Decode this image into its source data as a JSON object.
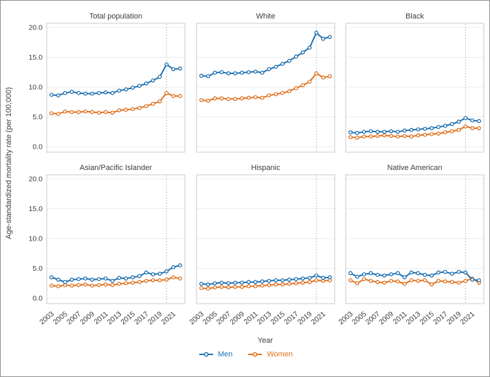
{
  "chart_data": {
    "type": "line",
    "ylabel": "Age-standardized mortality rate (per 100,000)",
    "xlabel": "Year",
    "ylim": [
      0,
      20
    ],
    "y_tick_values": [
      20,
      15,
      10,
      5,
      0
    ],
    "y_tick_labels": [
      "20.0",
      "15.0",
      "10.0",
      "5.0",
      "0.0"
    ],
    "years": [
      2003,
      2004,
      2005,
      2006,
      2007,
      2008,
      2009,
      2010,
      2011,
      2012,
      2013,
      2014,
      2015,
      2016,
      2017,
      2018,
      2019,
      2020,
      2021,
      2022
    ],
    "x_tick_labels": [
      "2003",
      "2005",
      "2007",
      "2009",
      "2011",
      "2013",
      "2015",
      "2017",
      "2019",
      "2021"
    ],
    "reference_line_year": 2020,
    "grid": true,
    "legend_position": "bottom",
    "legend": [
      {
        "label": "Men",
        "color": "#1d6fb0"
      },
      {
        "label": "Women",
        "color": "#e0711f"
      }
    ],
    "panels": [
      {
        "title": "Total population",
        "series": [
          {
            "name": "Men",
            "values": [
              8.7,
              8.6,
              9.0,
              9.2,
              9.0,
              8.9,
              8.9,
              9.0,
              9.1,
              9.0,
              9.4,
              9.6,
              9.9,
              10.2,
              10.6,
              11.1,
              11.7,
              13.8,
              13.0,
              13.1
            ]
          },
          {
            "name": "Women",
            "values": [
              5.6,
              5.5,
              5.9,
              5.8,
              5.8,
              5.9,
              5.8,
              5.7,
              5.8,
              5.7,
              6.1,
              6.2,
              6.3,
              6.5,
              6.8,
              7.2,
              7.6,
              9.0,
              8.5,
              8.5
            ]
          }
        ]
      },
      {
        "title": "White",
        "series": [
          {
            "name": "Men",
            "values": [
              11.9,
              11.8,
              12.4,
              12.5,
              12.3,
              12.3,
              12.4,
              12.5,
              12.6,
              12.4,
              13.0,
              13.4,
              13.9,
              14.4,
              15.1,
              15.8,
              16.6,
              19.1,
              18.1,
              18.4
            ]
          },
          {
            "name": "Women",
            "values": [
              7.8,
              7.7,
              8.1,
              8.1,
              8.0,
              8.0,
              8.1,
              8.2,
              8.3,
              8.2,
              8.6,
              8.8,
              9.0,
              9.3,
              9.8,
              10.3,
              10.9,
              12.3,
              11.6,
              11.8
            ]
          }
        ]
      },
      {
        "title": "Black",
        "series": [
          {
            "name": "Men",
            "values": [
              2.4,
              2.3,
              2.5,
              2.6,
              2.5,
              2.5,
              2.6,
              2.5,
              2.7,
              2.8,
              2.9,
              3.0,
              3.1,
              3.3,
              3.5,
              3.8,
              4.2,
              4.8,
              4.4,
              4.3
            ]
          },
          {
            "name": "Women",
            "values": [
              1.6,
              1.5,
              1.7,
              1.7,
              1.8,
              1.9,
              1.8,
              1.7,
              1.8,
              1.7,
              1.9,
              2.0,
              2.1,
              2.2,
              2.4,
              2.6,
              2.8,
              3.4,
              3.1,
              3.1
            ]
          }
        ]
      },
      {
        "title": "Asian/Pacific Islander",
        "series": [
          {
            "name": "Men",
            "values": [
              3.5,
              3.1,
              2.7,
              3.1,
              3.2,
              3.3,
              3.1,
              3.2,
              3.3,
              2.9,
              3.4,
              3.3,
              3.5,
              3.7,
              4.3,
              4.0,
              4.1,
              4.5,
              5.2,
              5.5
            ]
          },
          {
            "name": "Women",
            "values": [
              2.1,
              2.0,
              2.2,
              2.1,
              2.2,
              2.3,
              2.1,
              2.2,
              2.3,
              2.2,
              2.4,
              2.5,
              2.6,
              2.7,
              2.9,
              3.0,
              3.0,
              3.1,
              3.5,
              3.3
            ]
          }
        ]
      },
      {
        "title": "Hispanic",
        "series": [
          {
            "name": "Men",
            "values": [
              2.4,
              2.3,
              2.5,
              2.6,
              2.5,
              2.6,
              2.6,
              2.7,
              2.7,
              2.8,
              2.9,
              3.0,
              3.0,
              3.1,
              3.2,
              3.3,
              3.4,
              3.8,
              3.4,
              3.5
            ]
          },
          {
            "name": "Women",
            "values": [
              1.7,
              1.6,
              1.8,
              1.9,
              1.8,
              1.9,
              1.9,
              2.0,
              2.0,
              2.1,
              2.2,
              2.3,
              2.3,
              2.4,
              2.5,
              2.6,
              2.7,
              3.0,
              2.9,
              3.0
            ]
          }
        ]
      },
      {
        "title": "Native American",
        "series": [
          {
            "name": "Men",
            "values": [
              4.2,
              3.6,
              4.0,
              4.2,
              3.9,
              3.8,
              4.0,
              4.2,
              3.5,
              4.3,
              4.2,
              3.9,
              3.8,
              4.3,
              4.4,
              4.1,
              4.4,
              4.3,
              3.1,
              3.0
            ]
          },
          {
            "name": "Women",
            "values": [
              3.0,
              2.5,
              3.2,
              2.9,
              2.7,
              2.6,
              2.9,
              2.8,
              2.4,
              3.0,
              2.9,
              3.0,
              2.3,
              2.9,
              2.8,
              2.7,
              2.6,
              2.9,
              3.3,
              2.6
            ]
          }
        ]
      }
    ],
    "style_colors": {
      "grid": "#ececec",
      "panel_border": "#c9c9c9",
      "reference_line": "#b0b0b0",
      "text": "#3c3c3c",
      "marker_fill": "#ffffff"
    }
  }
}
